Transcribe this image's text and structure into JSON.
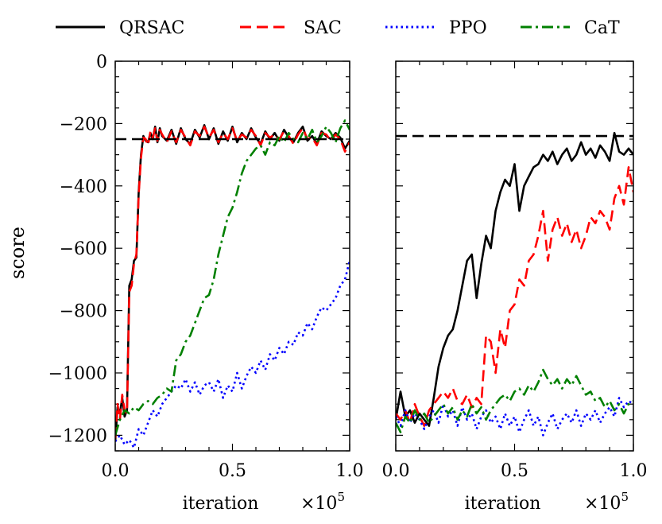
{
  "chart_data": [
    {
      "type": "line",
      "panel": "left",
      "ylabel": "score",
      "xlabel": "iteration",
      "x_scale_label": "×10",
      "x_scale_exp": "5",
      "xlim": [
        0.0,
        1.0
      ],
      "ylim": [
        -1250,
        0
      ],
      "xticks": [
        0.0,
        0.5,
        1.0
      ],
      "xtick_labels": [
        "0.0",
        "0.5",
        "1.0"
      ],
      "yticks": [
        0,
        -200,
        -400,
        -600,
        -800,
        -1000,
        -1200
      ],
      "ytick_labels": [
        "0",
        "−200",
        "−400",
        "−600",
        "−800",
        "−1000",
        "−1200"
      ],
      "reference_line": {
        "y": -250,
        "style": "dashed",
        "color": "#000000"
      },
      "series": [
        {
          "name": "QRSAC",
          "style": "solid",
          "color": "#000000",
          "x": [
            0.0,
            0.01,
            0.02,
            0.03,
            0.04,
            0.05,
            0.06,
            0.07,
            0.08,
            0.09,
            0.1,
            0.11,
            0.12,
            0.13,
            0.14,
            0.15,
            0.16,
            0.17,
            0.18,
            0.19,
            0.2,
            0.22,
            0.24,
            0.26,
            0.28,
            0.3,
            0.32,
            0.34,
            0.36,
            0.38,
            0.4,
            0.42,
            0.44,
            0.46,
            0.48,
            0.5,
            0.52,
            0.54,
            0.56,
            0.58,
            0.6,
            0.62,
            0.64,
            0.66,
            0.68,
            0.7,
            0.72,
            0.74,
            0.76,
            0.78,
            0.8,
            0.82,
            0.84,
            0.86,
            0.88,
            0.9,
            0.92,
            0.94,
            0.96,
            0.98,
            1.0
          ],
          "y": [
            -1220,
            -1110,
            -1130,
            -1080,
            -1140,
            -1120,
            -720,
            -700,
            -640,
            -630,
            -420,
            -300,
            -240,
            -255,
            -260,
            -230,
            -250,
            -210,
            -260,
            -215,
            -240,
            -255,
            -220,
            -265,
            -215,
            -250,
            -265,
            -220,
            -245,
            -205,
            -250,
            -215,
            -265,
            -225,
            -255,
            -210,
            -260,
            -230,
            -250,
            -215,
            -245,
            -265,
            -225,
            -250,
            -230,
            -255,
            -220,
            -245,
            -260,
            -230,
            -210,
            -255,
            -240,
            -265,
            -225,
            -240,
            -250,
            -230,
            -245,
            -280,
            -255
          ]
        },
        {
          "name": "SAC",
          "style": "dashed",
          "color": "#ff0000",
          "x": [
            0.0,
            0.01,
            0.02,
            0.03,
            0.04,
            0.05,
            0.06,
            0.07,
            0.08,
            0.09,
            0.1,
            0.11,
            0.12,
            0.13,
            0.14,
            0.15,
            0.16,
            0.17,
            0.18,
            0.19,
            0.2,
            0.22,
            0.24,
            0.26,
            0.28,
            0.3,
            0.32,
            0.34,
            0.36,
            0.38,
            0.4,
            0.42,
            0.44,
            0.46,
            0.48,
            0.5,
            0.52,
            0.54,
            0.56,
            0.58,
            0.6,
            0.62,
            0.64,
            0.66,
            0.68,
            0.7,
            0.72,
            0.74,
            0.76,
            0.78,
            0.8,
            0.82,
            0.84,
            0.86,
            0.88,
            0.9,
            0.92,
            0.94,
            0.96,
            0.98,
            1.0
          ],
          "y": [
            -1210,
            -1100,
            -1150,
            -1070,
            -1120,
            -1130,
            -740,
            -720,
            -650,
            -620,
            -430,
            -310,
            -245,
            -250,
            -270,
            -225,
            -245,
            -215,
            -255,
            -220,
            -235,
            -260,
            -225,
            -260,
            -220,
            -245,
            -270,
            -225,
            -240,
            -210,
            -245,
            -220,
            -260,
            -230,
            -250,
            -215,
            -255,
            -235,
            -245,
            -220,
            -240,
            -270,
            -230,
            -245,
            -235,
            -250,
            -225,
            -240,
            -265,
            -235,
            -215,
            -250,
            -245,
            -270,
            -230,
            -235,
            -255,
            -235,
            -250,
            -290,
            -260
          ]
        },
        {
          "name": "PPO",
          "style": "dotted",
          "color": "#0000ff",
          "x": [
            0.0,
            0.02,
            0.04,
            0.06,
            0.08,
            0.1,
            0.12,
            0.14,
            0.16,
            0.18,
            0.2,
            0.22,
            0.24,
            0.26,
            0.28,
            0.3,
            0.32,
            0.34,
            0.36,
            0.38,
            0.4,
            0.42,
            0.44,
            0.46,
            0.48,
            0.5,
            0.52,
            0.54,
            0.56,
            0.58,
            0.6,
            0.62,
            0.64,
            0.66,
            0.68,
            0.7,
            0.72,
            0.74,
            0.76,
            0.78,
            0.8,
            0.82,
            0.84,
            0.86,
            0.88,
            0.9,
            0.92,
            0.94,
            0.96,
            0.98,
            1.0
          ],
          "y": [
            -1220,
            -1200,
            -1230,
            -1215,
            -1240,
            -1180,
            -1200,
            -1160,
            -1120,
            -1140,
            -1100,
            -1080,
            -1060,
            -1040,
            -1050,
            -1020,
            -1060,
            -1030,
            -1070,
            -1040,
            -1030,
            -1060,
            -1020,
            -1080,
            -1040,
            -1060,
            -1000,
            -1050,
            -1010,
            -980,
            -1000,
            -960,
            -990,
            -940,
            -960,
            -920,
            -940,
            -900,
            -910,
            -870,
            -880,
            -840,
            -860,
            -820,
            -790,
            -800,
            -780,
            -760,
            -720,
            -700,
            -640
          ]
        },
        {
          "name": "CaT",
          "style": "dashdot",
          "color": "#008000",
          "x": [
            0.0,
            0.02,
            0.04,
            0.06,
            0.08,
            0.1,
            0.12,
            0.14,
            0.16,
            0.18,
            0.2,
            0.22,
            0.24,
            0.26,
            0.28,
            0.3,
            0.32,
            0.34,
            0.36,
            0.38,
            0.4,
            0.42,
            0.44,
            0.46,
            0.48,
            0.5,
            0.52,
            0.54,
            0.56,
            0.58,
            0.6,
            0.62,
            0.64,
            0.66,
            0.68,
            0.7,
            0.72,
            0.74,
            0.76,
            0.78,
            0.8,
            0.82,
            0.84,
            0.86,
            0.88,
            0.9,
            0.92,
            0.94,
            0.96,
            0.98,
            1.0
          ],
          "y": [
            -1200,
            -1150,
            -1120,
            -1130,
            -1110,
            -1120,
            -1100,
            -1090,
            -1100,
            -1080,
            -1070,
            -1050,
            -1060,
            -960,
            -940,
            -900,
            -880,
            -840,
            -800,
            -760,
            -750,
            -700,
            -620,
            -560,
            -500,
            -470,
            -420,
            -360,
            -320,
            -300,
            -280,
            -270,
            -300,
            -260,
            -270,
            -240,
            -260,
            -230,
            -250,
            -260,
            -230,
            -250,
            -220,
            -260,
            -240,
            -210,
            -230,
            -260,
            -215,
            -190,
            -220
          ]
        }
      ]
    },
    {
      "type": "line",
      "panel": "right",
      "xlabel": "iteration",
      "x_scale_label": "×10",
      "x_scale_exp": "5",
      "xlim": [
        0.0,
        1.0
      ],
      "ylim": [
        -1250,
        0
      ],
      "xticks": [
        0.0,
        0.5,
        1.0
      ],
      "xtick_labels": [
        "0.0",
        "0.5",
        "1.0"
      ],
      "reference_line": {
        "y": -240,
        "style": "dashed",
        "color": "#000000"
      },
      "series": [
        {
          "name": "QRSAC",
          "style": "solid",
          "color": "#000000",
          "x": [
            0.0,
            0.02,
            0.04,
            0.06,
            0.08,
            0.1,
            0.12,
            0.14,
            0.16,
            0.18,
            0.2,
            0.22,
            0.24,
            0.26,
            0.28,
            0.3,
            0.32,
            0.34,
            0.36,
            0.38,
            0.4,
            0.42,
            0.44,
            0.46,
            0.48,
            0.5,
            0.52,
            0.54,
            0.56,
            0.58,
            0.6,
            0.62,
            0.64,
            0.66,
            0.68,
            0.7,
            0.72,
            0.74,
            0.76,
            0.78,
            0.8,
            0.82,
            0.84,
            0.86,
            0.88,
            0.9,
            0.92,
            0.94,
            0.96,
            0.98,
            1.0
          ],
          "y": [
            -1150,
            -1060,
            -1140,
            -1120,
            -1160,
            -1130,
            -1150,
            -1170,
            -1080,
            -980,
            -920,
            -880,
            -860,
            -800,
            -720,
            -640,
            -620,
            -760,
            -650,
            -560,
            -600,
            -480,
            -420,
            -380,
            -400,
            -330,
            -480,
            -400,
            -370,
            -340,
            -330,
            -300,
            -320,
            -290,
            -330,
            -300,
            -280,
            -320,
            -300,
            -260,
            -300,
            -280,
            -310,
            -270,
            -290,
            -320,
            -230,
            -290,
            -300,
            -280,
            -300
          ]
        },
        {
          "name": "SAC",
          "style": "dashed",
          "color": "#ff0000",
          "x": [
            0.0,
            0.02,
            0.04,
            0.06,
            0.08,
            0.1,
            0.12,
            0.14,
            0.16,
            0.18,
            0.2,
            0.22,
            0.24,
            0.26,
            0.28,
            0.3,
            0.32,
            0.34,
            0.36,
            0.38,
            0.4,
            0.42,
            0.44,
            0.46,
            0.48,
            0.5,
            0.52,
            0.54,
            0.56,
            0.58,
            0.6,
            0.62,
            0.64,
            0.66,
            0.68,
            0.7,
            0.72,
            0.74,
            0.76,
            0.78,
            0.8,
            0.82,
            0.84,
            0.86,
            0.88,
            0.9,
            0.92,
            0.94,
            0.96,
            0.98,
            1.0
          ],
          "y": [
            -1130,
            -1150,
            -1120,
            -1160,
            -1100,
            -1140,
            -1170,
            -1120,
            -1100,
            -1080,
            -1060,
            -1080,
            -1050,
            -1090,
            -1100,
            -1070,
            -1110,
            -1080,
            -1100,
            -880,
            -900,
            -1000,
            -860,
            -920,
            -800,
            -780,
            -700,
            -720,
            -640,
            -620,
            -560,
            -480,
            -640,
            -540,
            -500,
            -560,
            -520,
            -580,
            -540,
            -600,
            -560,
            -500,
            -520,
            -480,
            -500,
            -540,
            -440,
            -400,
            -460,
            -340,
            -420
          ]
        },
        {
          "name": "PPO",
          "style": "dotted",
          "color": "#0000ff",
          "x": [
            0.0,
            0.02,
            0.04,
            0.06,
            0.08,
            0.1,
            0.12,
            0.14,
            0.16,
            0.18,
            0.2,
            0.22,
            0.24,
            0.26,
            0.28,
            0.3,
            0.32,
            0.34,
            0.36,
            0.38,
            0.4,
            0.42,
            0.44,
            0.46,
            0.48,
            0.5,
            0.52,
            0.54,
            0.56,
            0.58,
            0.6,
            0.62,
            0.64,
            0.66,
            0.68,
            0.7,
            0.72,
            0.74,
            0.76,
            0.78,
            0.8,
            0.82,
            0.84,
            0.86,
            0.88,
            0.9,
            0.92,
            0.94,
            0.96,
            0.98,
            1.0
          ],
          "y": [
            -1140,
            -1170,
            -1120,
            -1160,
            -1130,
            -1150,
            -1180,
            -1140,
            -1120,
            -1160,
            -1100,
            -1140,
            -1120,
            -1170,
            -1110,
            -1150,
            -1130,
            -1180,
            -1140,
            -1120,
            -1160,
            -1140,
            -1180,
            -1130,
            -1170,
            -1140,
            -1190,
            -1150,
            -1120,
            -1170,
            -1140,
            -1200,
            -1160,
            -1130,
            -1180,
            -1150,
            -1130,
            -1160,
            -1120,
            -1170,
            -1130,
            -1150,
            -1120,
            -1160,
            -1130,
            -1110,
            -1140,
            -1080,
            -1110,
            -1090,
            -1100
          ]
        },
        {
          "name": "CaT",
          "style": "dashdot",
          "color": "#008000",
          "x": [
            0.0,
            0.02,
            0.04,
            0.06,
            0.08,
            0.1,
            0.12,
            0.14,
            0.16,
            0.18,
            0.2,
            0.22,
            0.24,
            0.26,
            0.28,
            0.3,
            0.32,
            0.34,
            0.36,
            0.38,
            0.4,
            0.42,
            0.44,
            0.46,
            0.48,
            0.5,
            0.52,
            0.54,
            0.56,
            0.58,
            0.6,
            0.62,
            0.64,
            0.66,
            0.68,
            0.7,
            0.72,
            0.74,
            0.76,
            0.78,
            0.8,
            0.82,
            0.84,
            0.86,
            0.88,
            0.9,
            0.92,
            0.94,
            0.96,
            0.98,
            1.0
          ],
          "y": [
            -1160,
            -1190,
            -1140,
            -1160,
            -1120,
            -1150,
            -1130,
            -1160,
            -1140,
            -1120,
            -1100,
            -1130,
            -1110,
            -1150,
            -1120,
            -1140,
            -1100,
            -1130,
            -1110,
            -1150,
            -1120,
            -1100,
            -1080,
            -1070,
            -1090,
            -1060,
            -1050,
            -1070,
            -1040,
            -1060,
            -1030,
            -990,
            -1020,
            -1040,
            -1020,
            -1050,
            -1020,
            -1040,
            -1010,
            -1040,
            -1070,
            -1060,
            -1090,
            -1080,
            -1110,
            -1090,
            -1120,
            -1100,
            -1130,
            -1100,
            -1090
          ]
        }
      ]
    }
  ],
  "legend": {
    "placement": "top",
    "entries": [
      {
        "label": "QRSAC",
        "color": "#000000",
        "style": "solid"
      },
      {
        "label": "SAC",
        "color": "#ff0000",
        "style": "dashed"
      },
      {
        "label": "PPO",
        "color": "#0000ff",
        "style": "dotted"
      },
      {
        "label": "CaT",
        "color": "#008000",
        "style": "dashdot"
      }
    ]
  }
}
